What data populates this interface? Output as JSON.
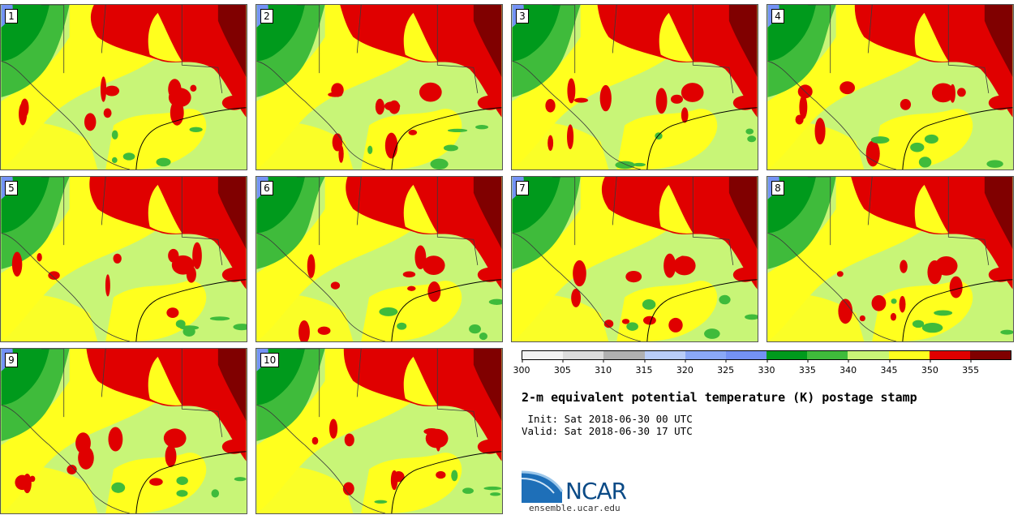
{
  "panels": [
    {
      "label": "1"
    },
    {
      "label": "2"
    },
    {
      "label": "3"
    },
    {
      "label": "4"
    },
    {
      "label": "5"
    },
    {
      "label": "6"
    },
    {
      "label": "7"
    },
    {
      "label": "8"
    },
    {
      "label": "9"
    },
    {
      "label": "10"
    }
  ],
  "colorbar": {
    "colors": [
      "#f2f2f2",
      "#dcdcdc",
      "#b0b0b0",
      "#b9cdf8",
      "#8aa8f7",
      "#7492f5",
      "#009a1c",
      "#3fbb3b",
      "#c8f577",
      "#ffff1e",
      "#e00000",
      "#800000"
    ],
    "ticks": [
      "300",
      "305",
      "310",
      "315",
      "320",
      "325",
      "330",
      "335",
      "340",
      "345",
      "350",
      "355"
    ]
  },
  "text": {
    "title": "2-m equivalent potential temperature (K) postage stamp",
    "init": " Init: Sat 2018-06-30 00 UTC",
    "valid": "Valid: Sat 2018-06-30 17 UTC",
    "logo": "NCAR",
    "site": "ensemble.ucar.edu"
  }
}
